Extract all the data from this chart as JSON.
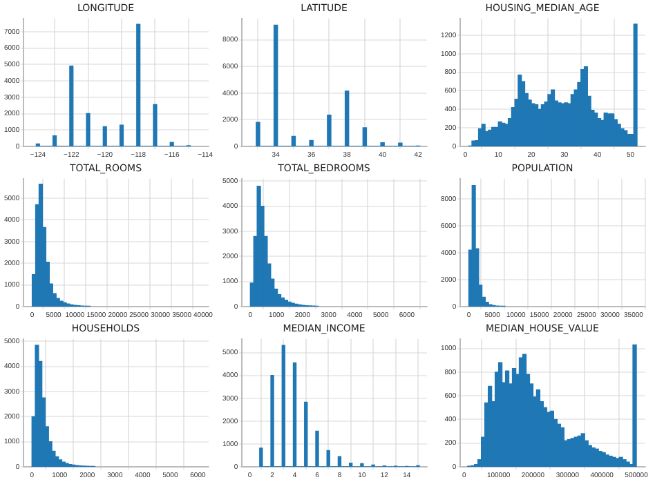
{
  "chart_data": [
    {
      "type": "histogram",
      "title": "LONGITUDE",
      "color": "#1f77b4",
      "grid": true,
      "bins": [
        -124.1,
        -123.9,
        -123.7,
        -123.5,
        -123.3,
        -123.1,
        -122.9,
        -122.7,
        -122.5,
        -122.3,
        -122.1,
        -121.9,
        -121.7,
        -121.5,
        -121.3,
        -121.1,
        -120.9,
        -120.7,
        -120.5,
        -120.3,
        -120.1,
        -119.9,
        -119.7,
        -119.5,
        -119.3,
        -119.1,
        -118.9,
        -118.7,
        -118.5,
        -118.3,
        -118.1,
        -117.9,
        -117.7,
        -117.5,
        -117.3,
        -117.1,
        -116.9,
        -116.7,
        -116.5,
        -116.3,
        -116.1,
        -115.9,
        -115.7,
        -115.5,
        -115.3,
        -115.1,
        -114.9
      ],
      "values": [
        150,
        0,
        0,
        0,
        0,
        650,
        0,
        0,
        0,
        0,
        4900,
        0,
        0,
        0,
        0,
        2000,
        0,
        0,
        0,
        0,
        1200,
        0,
        0,
        0,
        0,
        1300,
        0,
        0,
        0,
        0,
        7450,
        0,
        0,
        0,
        0,
        2550,
        0,
        0,
        0,
        0,
        250,
        0,
        0,
        0,
        0,
        50
      ],
      "xlim": [
        -124.85,
        -113.8
      ],
      "xticks": [
        -124,
        -122,
        -120,
        -118,
        -116,
        -114
      ],
      "ylim": [
        0,
        7800
      ],
      "yticks": [
        0,
        1000,
        2000,
        3000,
        4000,
        5000,
        6000,
        7000
      ]
    },
    {
      "type": "histogram",
      "title": "LATITUDE",
      "color": "#1f77b4",
      "grid": true,
      "bins": [
        32.9,
        33.1,
        33.3,
        33.5,
        33.7,
        33.9,
        34.1,
        34.3,
        34.5,
        34.7,
        34.9,
        35.1,
        35.3,
        35.5,
        35.7,
        35.9,
        36.1,
        36.3,
        36.5,
        36.7,
        36.9,
        37.1,
        37.3,
        37.5,
        37.7,
        37.9,
        38.1,
        38.3,
        38.5,
        38.7,
        38.9,
        39.1,
        39.3,
        39.5,
        39.7,
        39.9,
        40.1,
        40.3,
        40.5,
        40.7,
        40.9,
        41.1,
        41.3,
        41.5,
        41.7,
        41.9,
        42.1
      ],
      "values": [
        1800,
        0,
        0,
        0,
        0,
        9100,
        0,
        0,
        0,
        0,
        750,
        0,
        0,
        0,
        0,
        450,
        0,
        0,
        0,
        0,
        2350,
        0,
        0,
        0,
        0,
        4150,
        0,
        0,
        0,
        0,
        1400,
        0,
        0,
        0,
        0,
        280,
        0,
        0,
        0,
        0,
        250,
        0,
        0,
        0,
        0,
        20
      ],
      "xlim": [
        32.1,
        42.5
      ],
      "xticks": [
        34,
        36,
        38,
        40,
        42
      ],
      "ylim": [
        0,
        9600
      ],
      "yticks": [
        0,
        2000,
        4000,
        6000,
        8000
      ]
    },
    {
      "type": "histogram",
      "title": "HOUSING_MEDIAN_AGE",
      "color": "#1f77b4",
      "grid": true,
      "bins": [
        1,
        2,
        3,
        4,
        5,
        6,
        7,
        8,
        9,
        10,
        11,
        12,
        13,
        14,
        15,
        16,
        17,
        18,
        19,
        20,
        21,
        22,
        23,
        24,
        25,
        26,
        27,
        28,
        29,
        30,
        31,
        32,
        33,
        34,
        35,
        36,
        37,
        38,
        39,
        40,
        41,
        42,
        43,
        44,
        45,
        46,
        47,
        48,
        49,
        50,
        51,
        52
      ],
      "values": [
        4,
        58,
        62,
        190,
        240,
        160,
        175,
        205,
        205,
        265,
        250,
        240,
        300,
        420,
        510,
        770,
        700,
        570,
        500,
        460,
        450,
        400,
        450,
        480,
        560,
        610,
        490,
        470,
        460,
        470,
        460,
        560,
        610,
        690,
        830,
        860,
        540,
        390,
        360,
        300,
        280,
        360,
        350,
        350,
        290,
        240,
        190,
        170,
        130,
        130,
        1320
      ],
      "xlim": [
        -1.5,
        54.5
      ],
      "xticks": [
        0,
        10,
        20,
        30,
        40,
        50
      ],
      "ylim": [
        0,
        1380
      ],
      "yticks": [
        0,
        200,
        400,
        600,
        800,
        1000,
        1200
      ]
    },
    {
      "type": "histogram",
      "title": "TOTAL_ROOMS",
      "color": "#1f77b4",
      "grid": true,
      "bins": [
        0,
        800,
        1600,
        2400,
        3200,
        4000,
        4800,
        5600,
        6400,
        7200,
        8000,
        8800,
        9600,
        10400,
        11200,
        12000,
        12800,
        13600
      ],
      "values": [
        1480,
        4700,
        5650,
        3650,
        2050,
        1050,
        600,
        380,
        250,
        180,
        120,
        80,
        60,
        40,
        30,
        20,
        10
      ],
      "xlim": [
        -2000,
        41300
      ],
      "xticks": [
        0,
        5000,
        10000,
        15000,
        20000,
        25000,
        30000,
        35000,
        40000
      ],
      "ylim": [
        0,
        5900
      ],
      "yticks": [
        0,
        1000,
        2000,
        3000,
        4000,
        5000
      ]
    },
    {
      "type": "histogram",
      "title": "TOTAL_BEDROOMS",
      "color": "#1f77b4",
      "grid": true,
      "bins": [
        0,
        130,
        260,
        390,
        520,
        650,
        780,
        910,
        1040,
        1170,
        1300,
        1430,
        1560,
        1690,
        1820,
        1950,
        2080,
        2210,
        2340,
        2470,
        2600
      ],
      "values": [
        940,
        2800,
        4800,
        4000,
        2800,
        1700,
        1100,
        700,
        480,
        350,
        260,
        180,
        130,
        100,
        70,
        50,
        40,
        30,
        20,
        15
      ],
      "xlim": [
        -320,
        6770
      ],
      "xticks": [
        0,
        1000,
        2000,
        3000,
        4000,
        5000,
        6000
      ],
      "ylim": [
        0,
        5100
      ],
      "yticks": [
        0,
        1000,
        2000,
        3000,
        4000,
        5000
      ]
    },
    {
      "type": "histogram",
      "title": "POPULATION",
      "color": "#1f77b4",
      "grid": true,
      "bins": [
        0,
        700,
        1400,
        2100,
        2800,
        3500,
        4200,
        4900,
        5600,
        6300,
        7000,
        7700
      ],
      "values": [
        4200,
        9000,
        4300,
        1600,
        700,
        330,
        150,
        80,
        40,
        20,
        10
      ],
      "xlim": [
        -1800,
        37500
      ],
      "xticks": [
        0,
        5000,
        10000,
        15000,
        20000,
        25000,
        30000,
        35000
      ],
      "ylim": [
        0,
        9500
      ],
      "yticks": [
        0,
        2000,
        4000,
        6000,
        8000
      ]
    },
    {
      "type": "histogram",
      "title": "HOUSEHOLDS",
      "color": "#1f77b4",
      "grid": true,
      "bins": [
        0,
        120,
        240,
        360,
        480,
        600,
        720,
        840,
        960,
        1080,
        1200,
        1320,
        1440,
        1560,
        1680,
        1800,
        1920,
        2040,
        2160,
        2280
      ],
      "values": [
        2000,
        4850,
        4200,
        2750,
        1600,
        1000,
        620,
        400,
        280,
        190,
        130,
        90,
        70,
        50,
        40,
        30,
        20,
        15,
        10
      ],
      "xlim": [
        -300,
        6390
      ],
      "xticks": [
        0,
        1000,
        2000,
        3000,
        4000,
        5000,
        6000
      ],
      "ylim": [
        0,
        5100
      ],
      "yticks": [
        0,
        1000,
        2000,
        3000,
        4000,
        5000
      ]
    },
    {
      "type": "histogram",
      "title": "MEDIAN_INCOME",
      "color": "#1f77b4",
      "grid": true,
      "bins": [
        0.875,
        1.125,
        1.375,
        1.625,
        1.875,
        2.125,
        2.375,
        2.625,
        2.875,
        3.125,
        3.375,
        3.625,
        3.875,
        4.125,
        4.375,
        4.625,
        4.875,
        5.125,
        5.375,
        5.625,
        5.875,
        6.125,
        6.375,
        6.625,
        6.875,
        7.125,
        7.375,
        7.625,
        7.875,
        8.125,
        8.375,
        8.625,
        8.875,
        9.125,
        9.375,
        9.625,
        9.875,
        10.125,
        10.375,
        10.625,
        10.875,
        11.125,
        11.375,
        11.625,
        11.875,
        12.125,
        12.375,
        12.625,
        12.875,
        13.125,
        13.375,
        13.625,
        13.875,
        14.125,
        14.375,
        14.625,
        14.875,
        15.125
      ],
      "values": [
        820,
        0,
        0,
        0,
        4000,
        0,
        0,
        0,
        5320,
        0,
        0,
        0,
        4550,
        0,
        0,
        0,
        2830,
        0,
        0,
        0,
        1560,
        0,
        0,
        0,
        710,
        0,
        0,
        0,
        450,
        0,
        0,
        0,
        160,
        0,
        0,
        0,
        140,
        0,
        0,
        0,
        80,
        0,
        0,
        0,
        40,
        0,
        0,
        0,
        30,
        0,
        0,
        0,
        20,
        0,
        0,
        0,
        50
      ],
      "xlim": [
        -0.7,
        15.8
      ],
      "xticks": [
        0,
        2,
        4,
        6,
        8,
        10,
        12,
        14
      ],
      "ylim": [
        0,
        5600
      ],
      "yticks": [
        0,
        1000,
        2000,
        3000,
        4000,
        5000
      ]
    },
    {
      "type": "histogram",
      "title": "MEDIAN_HOUSE_VALUE",
      "color": "#1f77b4",
      "grid": true,
      "bins": [
        10000,
        20000,
        30000,
        40000,
        50000,
        60000,
        70000,
        80000,
        90000,
        100000,
        110000,
        120000,
        130000,
        140000,
        150000,
        160000,
        170000,
        180000,
        190000,
        200000,
        210000,
        220000,
        230000,
        240000,
        250000,
        260000,
        270000,
        280000,
        290000,
        300000,
        310000,
        320000,
        330000,
        340000,
        350000,
        360000,
        370000,
        380000,
        390000,
        400000,
        410000,
        420000,
        430000,
        440000,
        450000,
        460000,
        470000,
        480000,
        490000,
        500000
      ],
      "values": [
        5,
        10,
        20,
        60,
        250,
        540,
        680,
        550,
        800,
        880,
        710,
        810,
        700,
        830,
        780,
        920,
        950,
        780,
        700,
        590,
        650,
        550,
        500,
        460,
        470,
        400,
        360,
        330,
        220,
        230,
        240,
        250,
        260,
        280,
        220,
        180,
        160,
        150,
        130,
        120,
        100,
        90,
        80,
        70,
        80,
        60,
        40,
        20,
        1030
      ],
      "xlim": [
        -11000,
        526000
      ],
      "xticks": [
        0,
        100000,
        200000,
        300000,
        400000,
        500000
      ],
      "ylim": [
        0,
        1080
      ],
      "yticks": [
        0,
        200,
        400,
        600,
        800,
        1000
      ]
    }
  ]
}
